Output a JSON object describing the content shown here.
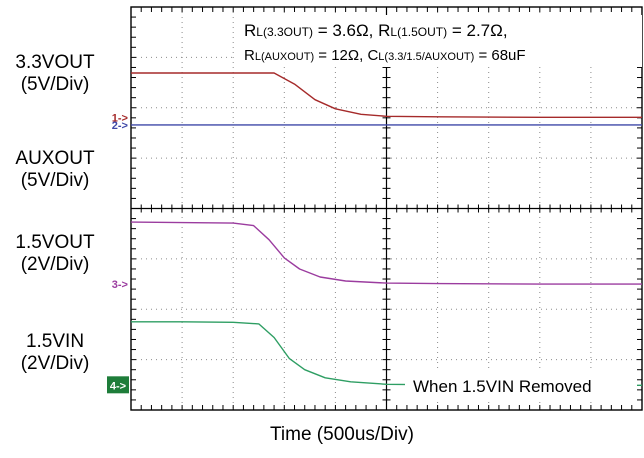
{
  "channels": [
    {
      "name": "3.3VOUT",
      "scale": "(5V/Div)",
      "marker": "1->",
      "color": "#a52a2a"
    },
    {
      "name": "AUXOUT",
      "scale": "(5V/Div)",
      "marker": "2->",
      "color": "#3f48a8"
    },
    {
      "name": "1.5VOUT",
      "scale": "(2V/Div)",
      "marker": "3->",
      "color": "#9b3c9f"
    },
    {
      "name": "1.5VIN",
      "scale": "(2V/Div)",
      "marker": "4->",
      "color": "#2e9e63"
    }
  ],
  "marker4_bg": "#1e7d3a",
  "annotation_line1": "RL(3.3OUT) = 3.6Ω, RL(1.5OUT) = 2.7Ω,",
  "annotation_line2": "RL(AUXOUT) = 12Ω, CL(3.3/1.5/AUXOUT) = 68uF",
  "annotation_note": "When 1.5VIN Removed",
  "xlabel": "Time (500us/Div)",
  "chart_data": {
    "type": "line",
    "title": "",
    "xlabel": "Time (500us/Div)",
    "ylabel": "",
    "x_unit": "div",
    "y_unit": "div",
    "xlim": [
      0,
      10
    ],
    "ylim": [
      0,
      8
    ],
    "grid": true,
    "series": [
      {
        "name": "3.3VOUT",
        "x": [
          0,
          1,
          2,
          2.8,
          3.2,
          3.6,
          4.0,
          4.5,
          5.0,
          6.0,
          8.0,
          10.0
        ],
        "values": [
          6.69,
          6.69,
          6.69,
          6.69,
          6.47,
          6.16,
          5.98,
          5.87,
          5.83,
          5.82,
          5.81,
          5.81
        ]
      },
      {
        "name": "AUXOUT",
        "x": [
          0,
          2,
          4,
          6,
          8,
          10
        ],
        "values": [
          5.66,
          5.66,
          5.66,
          5.66,
          5.66,
          5.66
        ]
      },
      {
        "name": "1.5VOUT",
        "x": [
          0,
          1,
          2,
          2.4,
          2.7,
          3.0,
          3.3,
          3.7,
          4.2,
          5.0,
          6.0,
          8.0,
          10.0
        ],
        "values": [
          3.73,
          3.72,
          3.71,
          3.66,
          3.38,
          3.02,
          2.8,
          2.64,
          2.56,
          2.52,
          2.51,
          2.5,
          2.5
        ]
      },
      {
        "name": "1.5VIN",
        "x": [
          0,
          1,
          2,
          2.5,
          2.8,
          3.1,
          3.4,
          3.8,
          4.3,
          5.0,
          6.0,
          8.0,
          10.0
        ],
        "values": [
          1.75,
          1.75,
          1.74,
          1.71,
          1.44,
          1.02,
          0.8,
          0.64,
          0.56,
          0.51,
          0.5,
          0.49,
          0.49
        ]
      }
    ]
  }
}
